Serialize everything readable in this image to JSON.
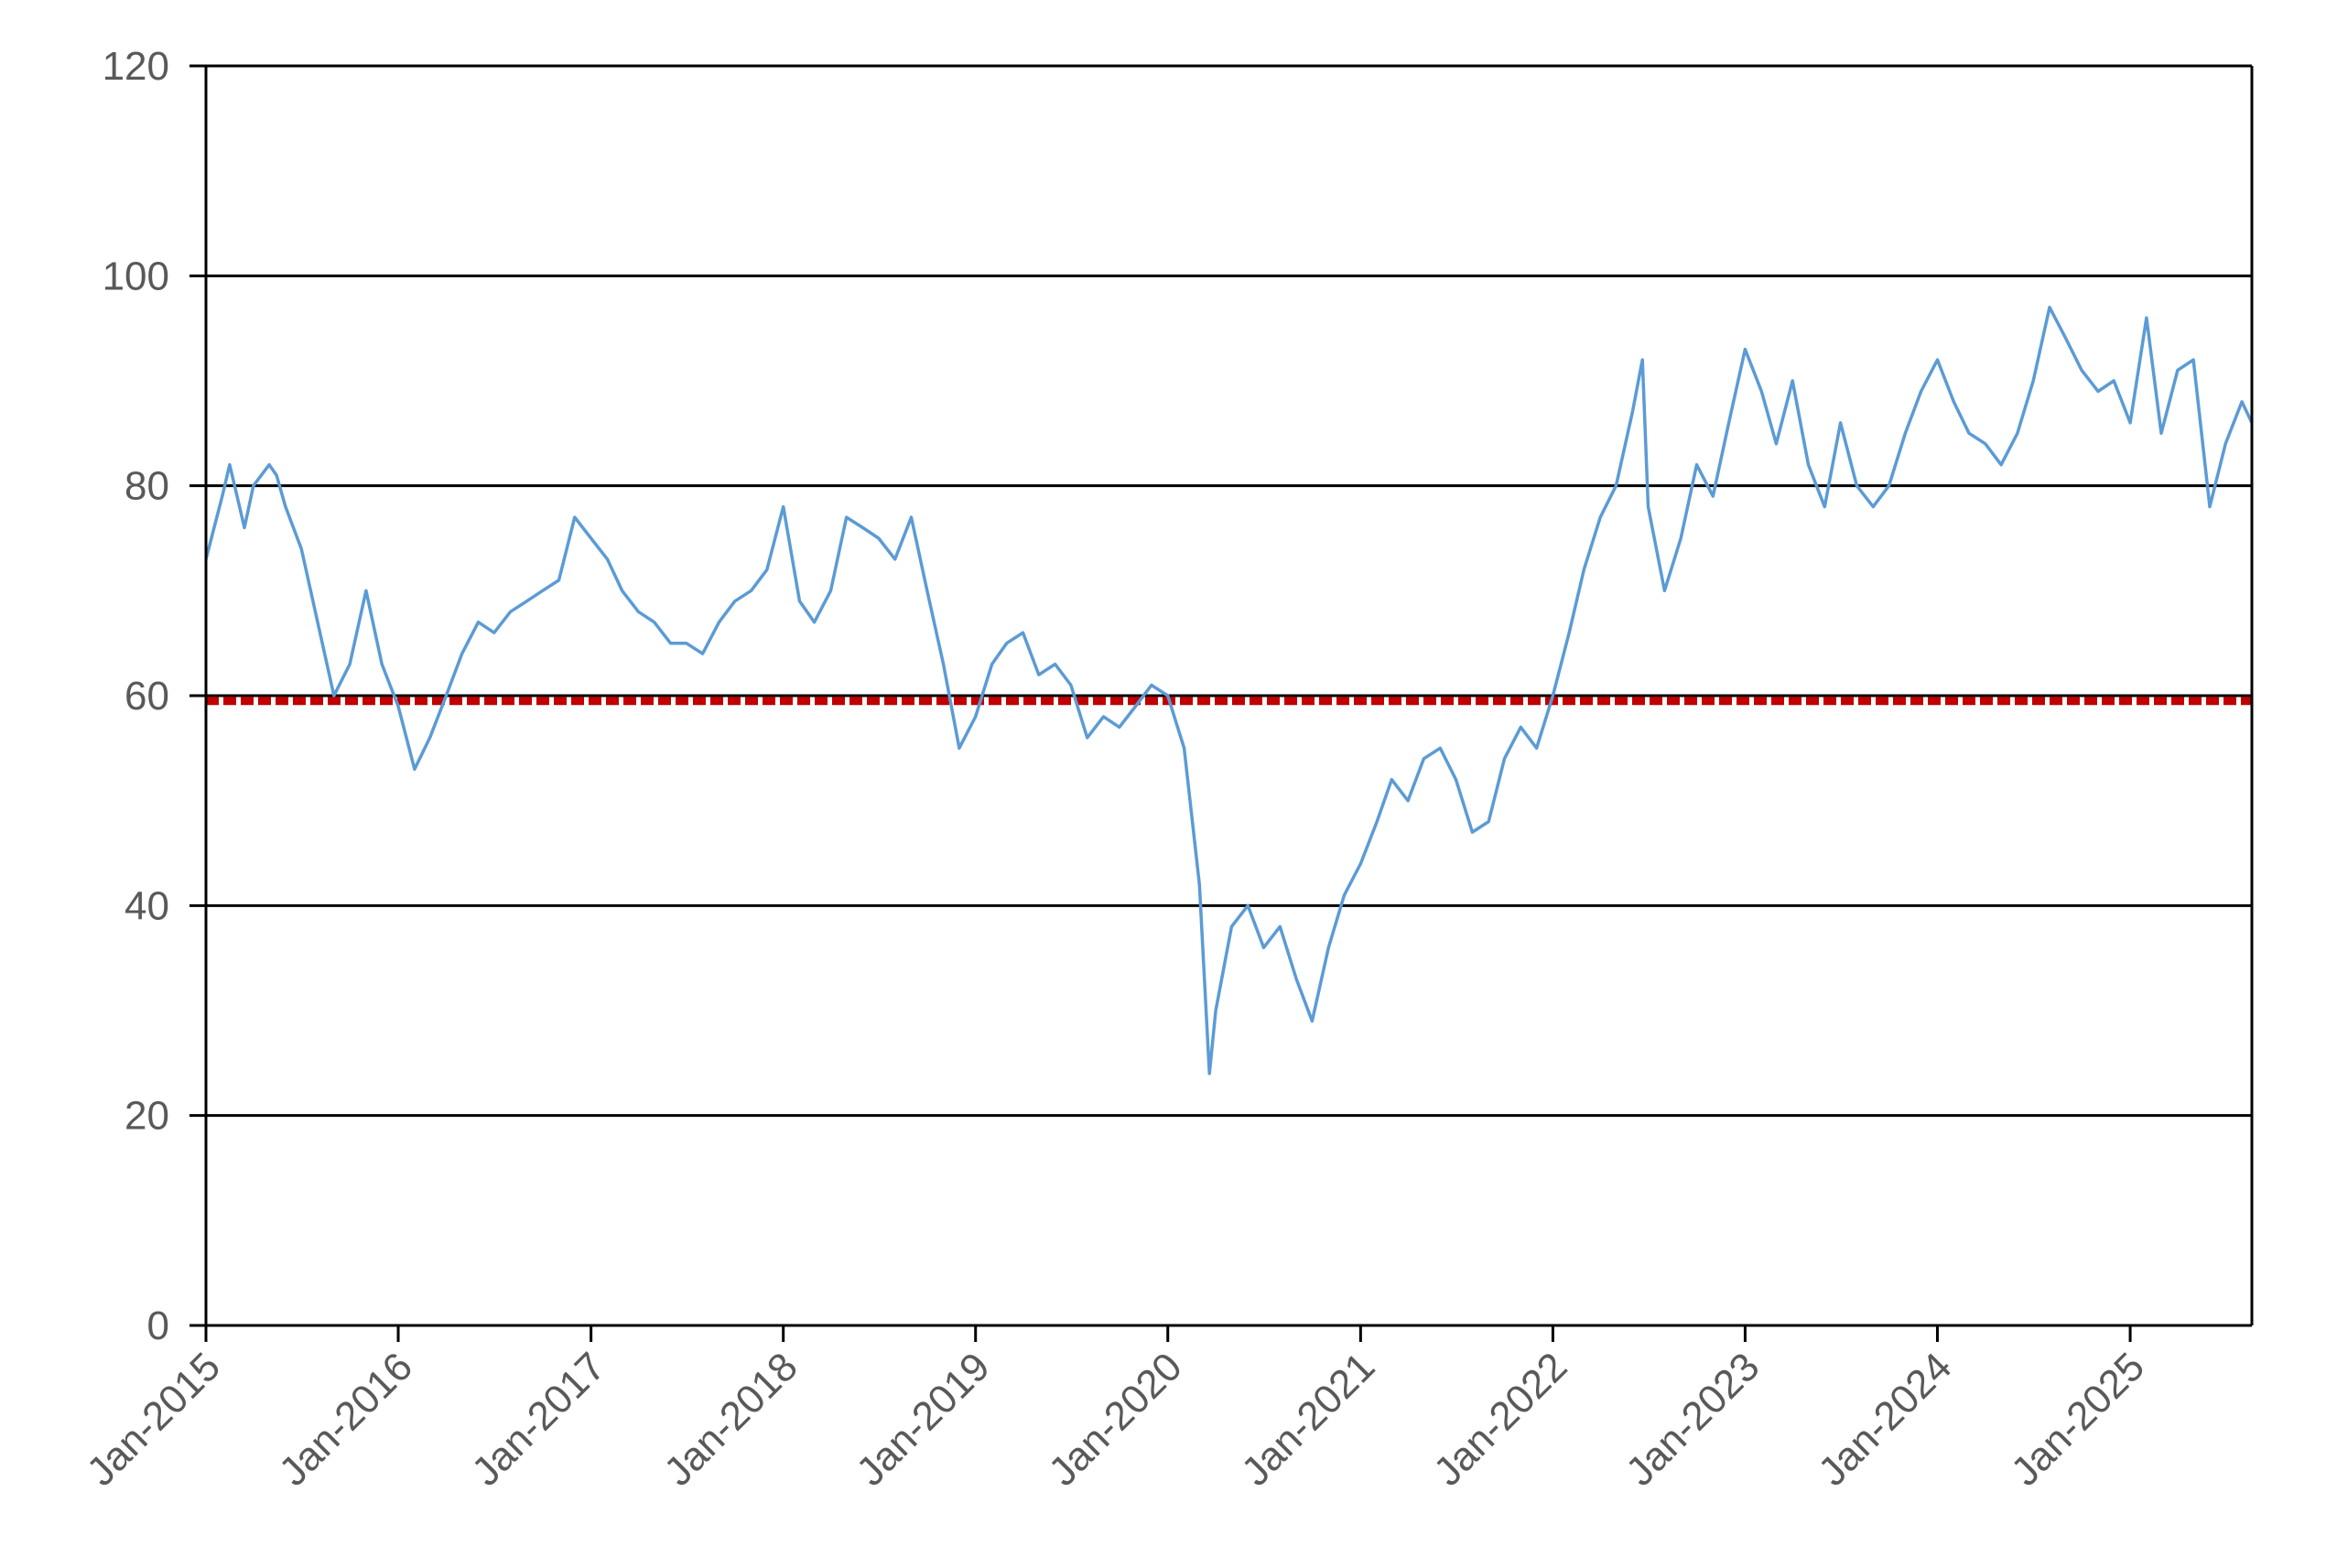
{
  "chart_data": {
    "type": "line",
    "title": "",
    "xlabel": "",
    "ylabel": "",
    "ylim": [
      0,
      120
    ],
    "yticks": [
      0,
      20,
      40,
      60,
      80,
      100,
      120
    ],
    "xlim": [
      "2015-01",
      "2025-08"
    ],
    "xtick_labels": [
      "Jan-2015",
      "Jan-2016",
      "Jan-2017",
      "Jan-2018",
      "Jan-2019",
      "Jan-2020",
      "Jan-2021",
      "Jan-2022",
      "Jan-2023",
      "Jan-2024",
      "Jan-2025"
    ],
    "grid": "horizontal",
    "legend": "none",
    "reference_line": {
      "y": 59.5,
      "style": "dashed",
      "color": "#c00000"
    },
    "series": [
      {
        "color": "#5b9bd5",
        "points": [
          [
            "2015-01-01",
            73
          ],
          [
            "2015-02-01",
            79
          ],
          [
            "2015-02-15",
            82
          ],
          [
            "2015-03-01",
            79
          ],
          [
            "2015-03-15",
            76
          ],
          [
            "2015-04-01",
            80
          ],
          [
            "2015-05-01",
            82
          ],
          [
            "2015-05-15",
            81
          ],
          [
            "2015-06-01",
            78
          ],
          [
            "2015-07-01",
            74
          ],
          [
            "2015-08-01",
            67
          ],
          [
            "2015-09-01",
            60
          ],
          [
            "2015-10-01",
            63
          ],
          [
            "2015-11-01",
            70
          ],
          [
            "2015-12-01",
            63
          ],
          [
            "2016-01-01",
            59
          ],
          [
            "2016-02-01",
            53
          ],
          [
            "2016-03-01",
            56
          ],
          [
            "2016-04-01",
            60
          ],
          [
            "2016-05-01",
            64
          ],
          [
            "2016-06-01",
            67
          ],
          [
            "2016-07-01",
            66
          ],
          [
            "2016-08-01",
            68
          ],
          [
            "2016-09-01",
            69
          ],
          [
            "2016-10-01",
            70
          ],
          [
            "2016-11-01",
            71
          ],
          [
            "2016-12-01",
            77
          ],
          [
            "2017-01-01",
            75
          ],
          [
            "2017-02-01",
            73
          ],
          [
            "2017-03-01",
            70
          ],
          [
            "2017-04-01",
            68
          ],
          [
            "2017-05-01",
            67
          ],
          [
            "2017-06-01",
            65
          ],
          [
            "2017-07-01",
            65
          ],
          [
            "2017-08-01",
            64
          ],
          [
            "2017-09-01",
            67
          ],
          [
            "2017-10-01",
            69
          ],
          [
            "2017-11-01",
            70
          ],
          [
            "2017-12-01",
            72
          ],
          [
            "2018-01-01",
            78
          ],
          [
            "2018-02-01",
            69
          ],
          [
            "2018-03-01",
            67
          ],
          [
            "2018-04-01",
            70
          ],
          [
            "2018-05-01",
            77
          ],
          [
            "2018-06-01",
            76
          ],
          [
            "2018-07-01",
            75
          ],
          [
            "2018-08-01",
            73
          ],
          [
            "2018-09-01",
            77
          ],
          [
            "2018-10-01",
            70
          ],
          [
            "2018-11-01",
            63
          ],
          [
            "2018-12-01",
            55
          ],
          [
            "2019-01-01",
            58
          ],
          [
            "2019-02-01",
            63
          ],
          [
            "2019-03-01",
            65
          ],
          [
            "2019-04-01",
            66
          ],
          [
            "2019-05-01",
            62
          ],
          [
            "2019-06-01",
            63
          ],
          [
            "2019-07-01",
            61
          ],
          [
            "2019-08-01",
            56
          ],
          [
            "2019-09-01",
            58
          ],
          [
            "2019-10-01",
            57
          ],
          [
            "2019-11-01",
            59
          ],
          [
            "2019-12-01",
            61
          ],
          [
            "2020-01-01",
            60
          ],
          [
            "2020-02-01",
            55
          ],
          [
            "2020-03-01",
            42
          ],
          [
            "2020-03-20",
            24
          ],
          [
            "2020-04-01",
            30
          ],
          [
            "2020-05-01",
            38
          ],
          [
            "2020-06-01",
            40
          ],
          [
            "2020-07-01",
            36
          ],
          [
            "2020-08-01",
            38
          ],
          [
            "2020-09-01",
            33
          ],
          [
            "2020-10-01",
            29
          ],
          [
            "2020-11-01",
            36
          ],
          [
            "2020-12-01",
            41
          ],
          [
            "2021-01-01",
            44
          ],
          [
            "2021-02-01",
            48
          ],
          [
            "2021-03-01",
            52
          ],
          [
            "2021-04-01",
            50
          ],
          [
            "2021-05-01",
            54
          ],
          [
            "2021-06-01",
            55
          ],
          [
            "2021-07-01",
            52
          ],
          [
            "2021-08-01",
            47
          ],
          [
            "2021-09-01",
            48
          ],
          [
            "2021-10-01",
            54
          ],
          [
            "2021-11-01",
            57
          ],
          [
            "2021-12-01",
            55
          ],
          [
            "2022-01-01",
            60
          ],
          [
            "2022-02-01",
            66
          ],
          [
            "2022-03-01",
            72
          ],
          [
            "2022-04-01",
            77
          ],
          [
            "2022-05-01",
            80
          ],
          [
            "2022-06-01",
            87
          ],
          [
            "2022-06-20",
            92
          ],
          [
            "2022-07-01",
            78
          ],
          [
            "2022-08-01",
            70
          ],
          [
            "2022-09-01",
            75
          ],
          [
            "2022-10-01",
            82
          ],
          [
            "2022-11-01",
            79
          ],
          [
            "2022-12-01",
            86
          ],
          [
            "2023-01-01",
            93
          ],
          [
            "2023-02-01",
            89
          ],
          [
            "2023-03-01",
            84
          ],
          [
            "2023-04-01",
            90
          ],
          [
            "2023-05-01",
            82
          ],
          [
            "2023-06-01",
            78
          ],
          [
            "2023-07-01",
            86
          ],
          [
            "2023-08-01",
            80
          ],
          [
            "2023-09-01",
            78
          ],
          [
            "2023-10-01",
            80
          ],
          [
            "2023-11-01",
            85
          ],
          [
            "2023-12-01",
            89
          ],
          [
            "2024-01-01",
            92
          ],
          [
            "2024-02-01",
            88
          ],
          [
            "2024-03-01",
            85
          ],
          [
            "2024-04-01",
            84
          ],
          [
            "2024-05-01",
            82
          ],
          [
            "2024-06-01",
            85
          ],
          [
            "2024-07-01",
            90
          ],
          [
            "2024-08-01",
            97
          ],
          [
            "2024-09-01",
            94
          ],
          [
            "2024-10-01",
            91
          ],
          [
            "2024-11-01",
            89
          ],
          [
            "2024-12-01",
            90
          ],
          [
            "2025-01-01",
            86
          ],
          [
            "2025-02-01",
            96
          ],
          [
            "2025-03-01",
            85
          ],
          [
            "2025-04-01",
            91
          ],
          [
            "2025-05-01",
            92
          ],
          [
            "2025-06-01",
            78
          ],
          [
            "2025-07-01",
            84
          ],
          [
            "2025-08-01",
            88
          ],
          [
            "2025-08-20",
            86
          ]
        ]
      }
    ]
  }
}
